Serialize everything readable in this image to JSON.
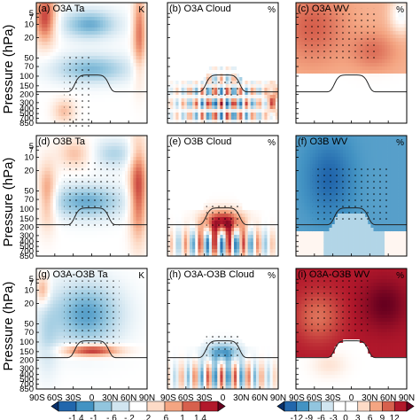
{
  "chart_data": {
    "type": "heatmap",
    "ylabel": "Pressure (hPa)",
    "y_ticks": [
      "5",
      "7",
      "10",
      "20",
      "50",
      "70",
      "100",
      "150",
      "200",
      "300",
      "400",
      "500",
      "700",
      "850"
    ],
    "x_ticks": [
      "90S",
      "60S",
      "30S",
      "0",
      "30N",
      "60N",
      "90N"
    ],
    "rows": [
      "O3A",
      "O3B",
      "O3A-O3B"
    ],
    "columns": [
      "Ta",
      "Cloud",
      "WV"
    ],
    "panels": [
      {
        "label": "(a) O3A Ta",
        "unit": "K"
      },
      {
        "label": "(b) O3A Cloud",
        "unit": "%"
      },
      {
        "label": "(c) O3A WV",
        "unit": "%"
      },
      {
        "label": "(d) O3B Ta",
        "unit": ""
      },
      {
        "label": "(e) O3B Cloud",
        "unit": "%"
      },
      {
        "label": "(f) O3B WV",
        "unit": "%"
      },
      {
        "label": "(g) O3A-O3B Ta",
        "unit": "K"
      },
      {
        "label": "(h) O3A-O3B Cloud",
        "unit": "%"
      },
      {
        "label": "(i) O3A-O3B WV",
        "unit": "%"
      }
    ],
    "colorbars": [
      {
        "ticks": [
          "-1.4",
          "-1",
          "-.6",
          "-.2",
          ".2",
          ".6",
          "1",
          "1.4"
        ],
        "colors": [
          "#08306b",
          "#2166ac",
          "#4393c3",
          "#92c5de",
          "#d1e5f0",
          "#ffffff",
          "#fddbc7",
          "#f4a582",
          "#d6604d",
          "#b2182b",
          "#67001f"
        ]
      },
      {
        "ticks": [
          "-12",
          "-9",
          "-6",
          "-3",
          "0",
          "3",
          "6",
          "9",
          "12"
        ],
        "colors": [
          "#08306b",
          "#2166ac",
          "#4393c3",
          "#92c5de",
          "#d1e5f0",
          "#ffffff",
          "#ffffff",
          "#fddbc7",
          "#f4a582",
          "#d6604d",
          "#b2182b",
          "#67001f"
        ]
      }
    ],
    "grid": false
  }
}
